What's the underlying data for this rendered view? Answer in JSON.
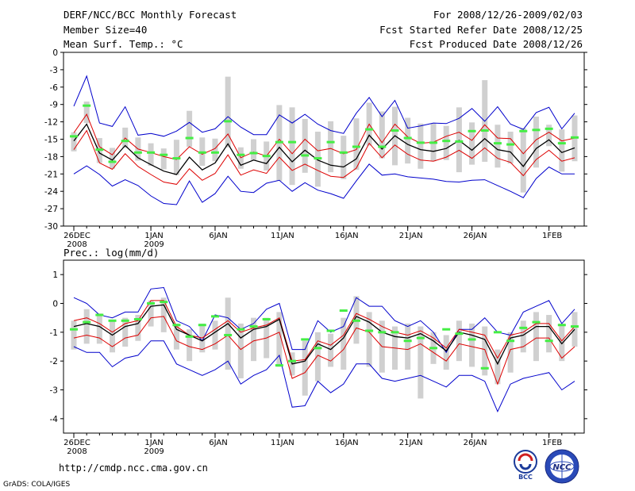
{
  "header": {
    "title": "DERF/NCC/BCC Monthly Forecast",
    "member_size": "Member Size=40",
    "variable": "Mean Surf. Temp.: °C",
    "period": "For 2008/12/26-2009/02/03",
    "started": "Fcst Started Refer Date 2008/12/25",
    "produced": "Fcst Produced Date 2008/12/26"
  },
  "footer": {
    "url": "http://cmdp.ncc.cma.gov.cn",
    "grads": "GrADS: COLA/IGES",
    "logo1": "BCC",
    "logo2": "NCC"
  },
  "colors": {
    "frame": "#000000",
    "grey_bar": "#d0d0d0",
    "green_mark": "#44ee44",
    "mean_line": "#000000",
    "inner_band": "#dd0000",
    "outer_band": "#0000cc"
  },
  "chart_data": [
    {
      "type": "line",
      "title": "Mean Surf. Temp.: °C",
      "ylim": [
        -30,
        0
      ],
      "yticks": [
        0,
        -3,
        -6,
        -9,
        -12,
        -15,
        -18,
        -21,
        -24,
        -27,
        -30
      ],
      "xlim": [
        0,
        39
      ],
      "xticks": [
        {
          "i": 0,
          "label": "26DEC",
          "sub": "2008"
        },
        {
          "i": 6,
          "label": "1JAN",
          "sub": "2009"
        },
        {
          "i": 11,
          "label": "6JAN",
          "sub": ""
        },
        {
          "i": 16,
          "label": "11JAN",
          "sub": ""
        },
        {
          "i": 21,
          "label": "16JAN",
          "sub": ""
        },
        {
          "i": 26,
          "label": "21JAN",
          "sub": ""
        },
        {
          "i": 31,
          "label": "26JAN",
          "sub": ""
        },
        {
          "i": 37,
          "label": "1FEB",
          "sub": ""
        }
      ],
      "series": [
        {
          "name": "max",
          "color": "#0000cc",
          "values": [
            -9.3,
            -4.1,
            -12.2,
            -12.8,
            -9.4,
            -14.3,
            -14,
            -14.5,
            -13.6,
            -12.1,
            -13.8,
            -13.2,
            -11.1,
            -12.9,
            -14.2,
            -14.2,
            -10.8,
            -12.2,
            -10.7,
            -12.4,
            -13.5,
            -14,
            -10.5,
            -7.8,
            -11.1,
            -8.3,
            -13.1,
            -12.7,
            -12.2,
            -12.3,
            -11.4,
            -9.7,
            -11.9,
            -9.4,
            -12.4,
            -13.3,
            -10.4,
            -9.5,
            -13.2,
            -10.5
          ]
        },
        {
          "name": "upper",
          "color": "#dd0000",
          "values": [
            -13.9,
            -10.7,
            -16.3,
            -17.7,
            -14.8,
            -16.7,
            -17.3,
            -18,
            -18.5,
            -16.3,
            -17.6,
            -16.6,
            -14.1,
            -18.2,
            -17.2,
            -17.9,
            -15,
            -17.5,
            -15,
            -17,
            -16.6,
            -17.5,
            -16.8,
            -12.4,
            -15.6,
            -12.4,
            -14.6,
            -15.7,
            -15.5,
            -14.5,
            -13.8,
            -15.2,
            -12.5,
            -14.8,
            -14.9,
            -17.5,
            -15.1,
            -13.8,
            -15.3,
            -14.8
          ]
        },
        {
          "name": "mean",
          "color": "#000000",
          "values": [
            -15.3,
            -12.4,
            -17.4,
            -18.6,
            -16.1,
            -18.2,
            -19.4,
            -20.5,
            -21.1,
            -18.1,
            -20.3,
            -19.1,
            -15.8,
            -19.5,
            -18.6,
            -19.2,
            -16.4,
            -18.9,
            -16.9,
            -18.6,
            -19.5,
            -19.8,
            -18.4,
            -14.3,
            -16.7,
            -14.4,
            -15.9,
            -16.8,
            -17.1,
            -16.6,
            -15.2,
            -16.9,
            -14.9,
            -16.8,
            -17.2,
            -19.7,
            -16.6,
            -15.1,
            -17.3,
            -16.5
          ]
        },
        {
          "name": "lower",
          "color": "#dd0000",
          "values": [
            -16.8,
            -13.5,
            -19.1,
            -20.2,
            -17.5,
            -19.7,
            -21.1,
            -22.4,
            -22.8,
            -20.1,
            -22.1,
            -20.9,
            -17.7,
            -21.2,
            -20.3,
            -20.9,
            -18.1,
            -20.4,
            -19.3,
            -20.4,
            -21.4,
            -21.6,
            -20,
            -15.7,
            -18.2,
            -16,
            -17.6,
            -18.6,
            -18.8,
            -18.1,
            -16.9,
            -18.3,
            -16.5,
            -18.3,
            -19,
            -21.3,
            -18.5,
            -16.9,
            -18.8,
            -18.2
          ]
        },
        {
          "name": "min",
          "color": "#0000cc",
          "values": [
            -21,
            -19.6,
            -21.1,
            -23.1,
            -22,
            -23,
            -24.8,
            -26.1,
            -26.3,
            -22.2,
            -25.9,
            -24.4,
            -21.4,
            -24,
            -24.2,
            -22.6,
            -22.1,
            -24,
            -22.5,
            -23.8,
            -24.4,
            -25.2,
            -22.2,
            -19.3,
            -21.2,
            -21,
            -21.5,
            -21.7,
            -21.9,
            -22.3,
            -22.4,
            -22.1,
            -22,
            -23,
            -24,
            -25.1,
            -21.8,
            -19.8,
            -21,
            -21
          ]
        }
      ],
      "bars": [
        [
          -13.8,
          -17.1
        ],
        [
          -8.5,
          -12.2
        ],
        [
          -14.8,
          -19.1
        ],
        [
          -16.5,
          -20.1
        ],
        [
          -13,
          -16.5
        ],
        [
          -14.7,
          -18.7
        ],
        [
          -15.7,
          -19.6
        ],
        [
          -16.6,
          -20.2
        ],
        [
          -15.1,
          -21.2
        ],
        [
          -10.1,
          -16.3
        ],
        [
          -14.7,
          -19.6
        ],
        [
          -14.9,
          -18.8
        ],
        [
          -4.2,
          -16.4
        ],
        [
          -16.4,
          -20.1
        ],
        [
          -15,
          -18.6
        ],
        [
          -15.4,
          -20.4
        ],
        [
          -9.1,
          -22.2
        ],
        [
          -9.5,
          -22.9
        ],
        [
          -11.5,
          -20.8
        ],
        [
          -13.7,
          -23.2
        ],
        [
          -11.9,
          -20.7
        ],
        [
          -14.4,
          -21.9
        ],
        [
          -11.4,
          -20.3
        ],
        [
          -8.7,
          -16.1
        ],
        [
          -10.2,
          -18.3
        ],
        [
          -9.4,
          -19.5
        ],
        [
          -11.3,
          -19.2
        ],
        [
          -12.3,
          -20.1
        ],
        [
          -12.3,
          -18.8
        ],
        [
          -12.7,
          -18.6
        ],
        [
          -9.5,
          -20.7
        ],
        [
          -12.1,
          -19.4
        ],
        [
          -4.8,
          -18.9
        ],
        [
          -12.5,
          -19.9
        ],
        [
          -13.7,
          -19.2
        ],
        [
          -13.1,
          -24.2
        ],
        [
          -11.1,
          -19.9
        ],
        [
          -12.5,
          -16.2
        ],
        [
          -13.3,
          -20.6
        ],
        [
          -10.9,
          -18.8
        ]
      ],
      "marks": [
        -14.5,
        -9.2,
        -16.8,
        -18.9,
        -15.3,
        -17.3,
        -17.3,
        -17.7,
        -18.3,
        -14.8,
        -17.3,
        -17.3,
        -11.9,
        -17.7,
        -17.4,
        -17.9,
        -15.5,
        -15.5,
        -17.8,
        -18.3,
        -15.5,
        -17.3,
        -16.3,
        -13.3,
        -16.3,
        -13.5,
        -14.8,
        -15.6,
        -15.6,
        -15.3,
        -15.4,
        -13.6,
        -13.5,
        -15.7,
        -15.9,
        -13.6,
        -13.4,
        -13.2,
        -15.7,
        -14.7
      ]
    },
    {
      "type": "line",
      "title": "Prec.: log(mm/d)",
      "ylim": [
        -4.5,
        1.5
      ],
      "yticks": [
        1,
        0,
        -1,
        -2,
        -3,
        -4
      ],
      "xlim": [
        0,
        39
      ],
      "xticks": [
        {
          "i": 0,
          "label": "26DEC",
          "sub": "2008"
        },
        {
          "i": 6,
          "label": "1JAN",
          "sub": "2009"
        },
        {
          "i": 11,
          "label": "6JAN",
          "sub": ""
        },
        {
          "i": 16,
          "label": "11JAN",
          "sub": ""
        },
        {
          "i": 21,
          "label": "16JAN",
          "sub": ""
        },
        {
          "i": 26,
          "label": "21JAN",
          "sub": ""
        },
        {
          "i": 31,
          "label": "26JAN",
          "sub": ""
        },
        {
          "i": 37,
          "label": "1FEB",
          "sub": ""
        }
      ],
      "series": [
        {
          "name": "max",
          "color": "#0000cc",
          "values": [
            0.2,
            0,
            -0.4,
            -0.5,
            -0.3,
            -0.3,
            0.5,
            0.55,
            -0.6,
            -0.8,
            -1.3,
            -0.4,
            -0.5,
            -0.9,
            -0.7,
            -0.2,
            0,
            -1.6,
            -1.6,
            -0.6,
            -1,
            -0.8,
            0.2,
            -0.1,
            -0.1,
            -0.6,
            -0.8,
            -0.6,
            -1,
            -1.7,
            -0.9,
            -0.9,
            -0.5,
            -1,
            -1.1,
            -0.3,
            -0.1,
            0.1,
            -0.7,
            -0.2
          ]
        },
        {
          "name": "upper",
          "color": "#dd0000",
          "values": [
            -0.6,
            -0.5,
            -0.7,
            -1,
            -0.7,
            -0.6,
            0.1,
            0.1,
            -0.8,
            -1.1,
            -1.2,
            -0.9,
            -0.6,
            -1,
            -0.85,
            -0.75,
            -0.5,
            -2,
            -1.95,
            -1.3,
            -1.45,
            -1.1,
            -0.35,
            -0.55,
            -0.8,
            -1,
            -1.1,
            -0.95,
            -1.2,
            -1.55,
            -0.9,
            -1,
            -1.1,
            -1.9,
            -1.1,
            -1,
            -0.7,
            -0.7,
            -1.3,
            -0.8
          ]
        },
        {
          "name": "mean",
          "color": "#000000",
          "values": [
            -0.8,
            -0.7,
            -0.8,
            -1.1,
            -0.8,
            -0.7,
            -0.1,
            -0.05,
            -0.9,
            -1.1,
            -1.3,
            -1,
            -0.7,
            -1.2,
            -0.9,
            -0.8,
            -0.55,
            -2.1,
            -2,
            -1.4,
            -1.6,
            -1.2,
            -0.45,
            -0.65,
            -1,
            -1.15,
            -1.2,
            -1.05,
            -1.3,
            -1.65,
            -1,
            -1.1,
            -1.25,
            -2.1,
            -1.2,
            -1.1,
            -0.8,
            -0.8,
            -1.4,
            -0.9
          ]
        },
        {
          "name": "lower",
          "color": "#dd0000",
          "values": [
            -1.2,
            -1.1,
            -1.2,
            -1.5,
            -1.2,
            -1.1,
            -0.5,
            -0.45,
            -1.3,
            -1.5,
            -1.6,
            -1.4,
            -1.1,
            -1.6,
            -1.3,
            -1.2,
            -1,
            -2.6,
            -2.4,
            -1.8,
            -2,
            -1.6,
            -0.85,
            -1,
            -1.5,
            -1.55,
            -1.6,
            -1.4,
            -1.7,
            -2,
            -1.4,
            -1.5,
            -1.6,
            -2.8,
            -1.6,
            -1.5,
            -1.2,
            -1.2,
            -1.9,
            -1.5
          ]
        },
        {
          "name": "min",
          "color": "#0000cc",
          "values": [
            -1.5,
            -1.7,
            -1.7,
            -2.2,
            -1.9,
            -1.8,
            -1.3,
            -1.3,
            -2.1,
            -2.3,
            -2.5,
            -2.3,
            -2,
            -2.8,
            -2.5,
            -2.3,
            -1.8,
            -3.6,
            -3.55,
            -2.7,
            -3.1,
            -2.8,
            -2.1,
            -2.1,
            -2.6,
            -2.7,
            -2.6,
            -2.5,
            -2.7,
            -2.9,
            -2.5,
            -2.5,
            -2.7,
            -3.75,
            -2.8,
            -2.6,
            -2.5,
            -2.4,
            -3,
            -2.7
          ]
        }
      ],
      "bars": [
        [
          -0.6,
          -1.6
        ],
        [
          -0.2,
          -1.4
        ],
        [
          -0.35,
          -1.4
        ],
        [
          -0.6,
          -1.7
        ],
        [
          -0.5,
          -1.5
        ],
        [
          -0.4,
          -1.3
        ],
        [
          0.1,
          -0.8
        ],
        [
          0.2,
          -1
        ],
        [
          -0.7,
          -1.6
        ],
        [
          -0.9,
          -2
        ],
        [
          -0.7,
          -1.7
        ],
        [
          -0.6,
          -1.6
        ],
        [
          0.2,
          -2.3
        ],
        [
          -0.7,
          -2.6
        ],
        [
          -0.5,
          -2
        ],
        [
          -0.5,
          -1.9
        ],
        [
          -0.3,
          -2.2
        ],
        [
          -1.7,
          -2.5
        ],
        [
          -1.3,
          -3.2
        ],
        [
          -1,
          -2.7
        ],
        [
          -1.05,
          -2.2
        ],
        [
          -0.5,
          -2.3
        ],
        [
          0.25,
          -1.4
        ],
        [
          -0.3,
          -2.2
        ],
        [
          -0.6,
          -2.4
        ],
        [
          -0.8,
          -2.3
        ],
        [
          -0.7,
          -2.3
        ],
        [
          -0.8,
          -3.3
        ],
        [
          -1,
          -2.1
        ],
        [
          -1.1,
          -2.3
        ],
        [
          -0.6,
          -2
        ],
        [
          -0.7,
          -2.2
        ],
        [
          -0.8,
          -2.5
        ],
        [
          -1.6,
          -2.8
        ],
        [
          -1,
          -2.4
        ],
        [
          -0.6,
          -1.7
        ],
        [
          -0.3,
          -2
        ],
        [
          -0.4,
          -1.7
        ],
        [
          -0.7,
          -2
        ],
        [
          -0.3,
          -1.5
        ]
      ],
      "marks": [
        -0.9,
        -0.65,
        -0.4,
        -0.6,
        -0.6,
        -0.55,
        0,
        0.05,
        -0.75,
        -1.15,
        -0.75,
        -0.45,
        -1.1,
        -0.9,
        -0.8,
        -0.55,
        -2.15,
        -2,
        -1.25,
        -1.55,
        -0.95,
        -0.25,
        -0.6,
        -0.95,
        -1,
        -1,
        -1.3,
        -1.2,
        -1.55,
        -0.9,
        -1.05,
        -1.25,
        -2.25,
        -1,
        -1.3,
        -0.85,
        -0.65,
        -1.3,
        -0.75,
        -0.8
      ]
    }
  ]
}
